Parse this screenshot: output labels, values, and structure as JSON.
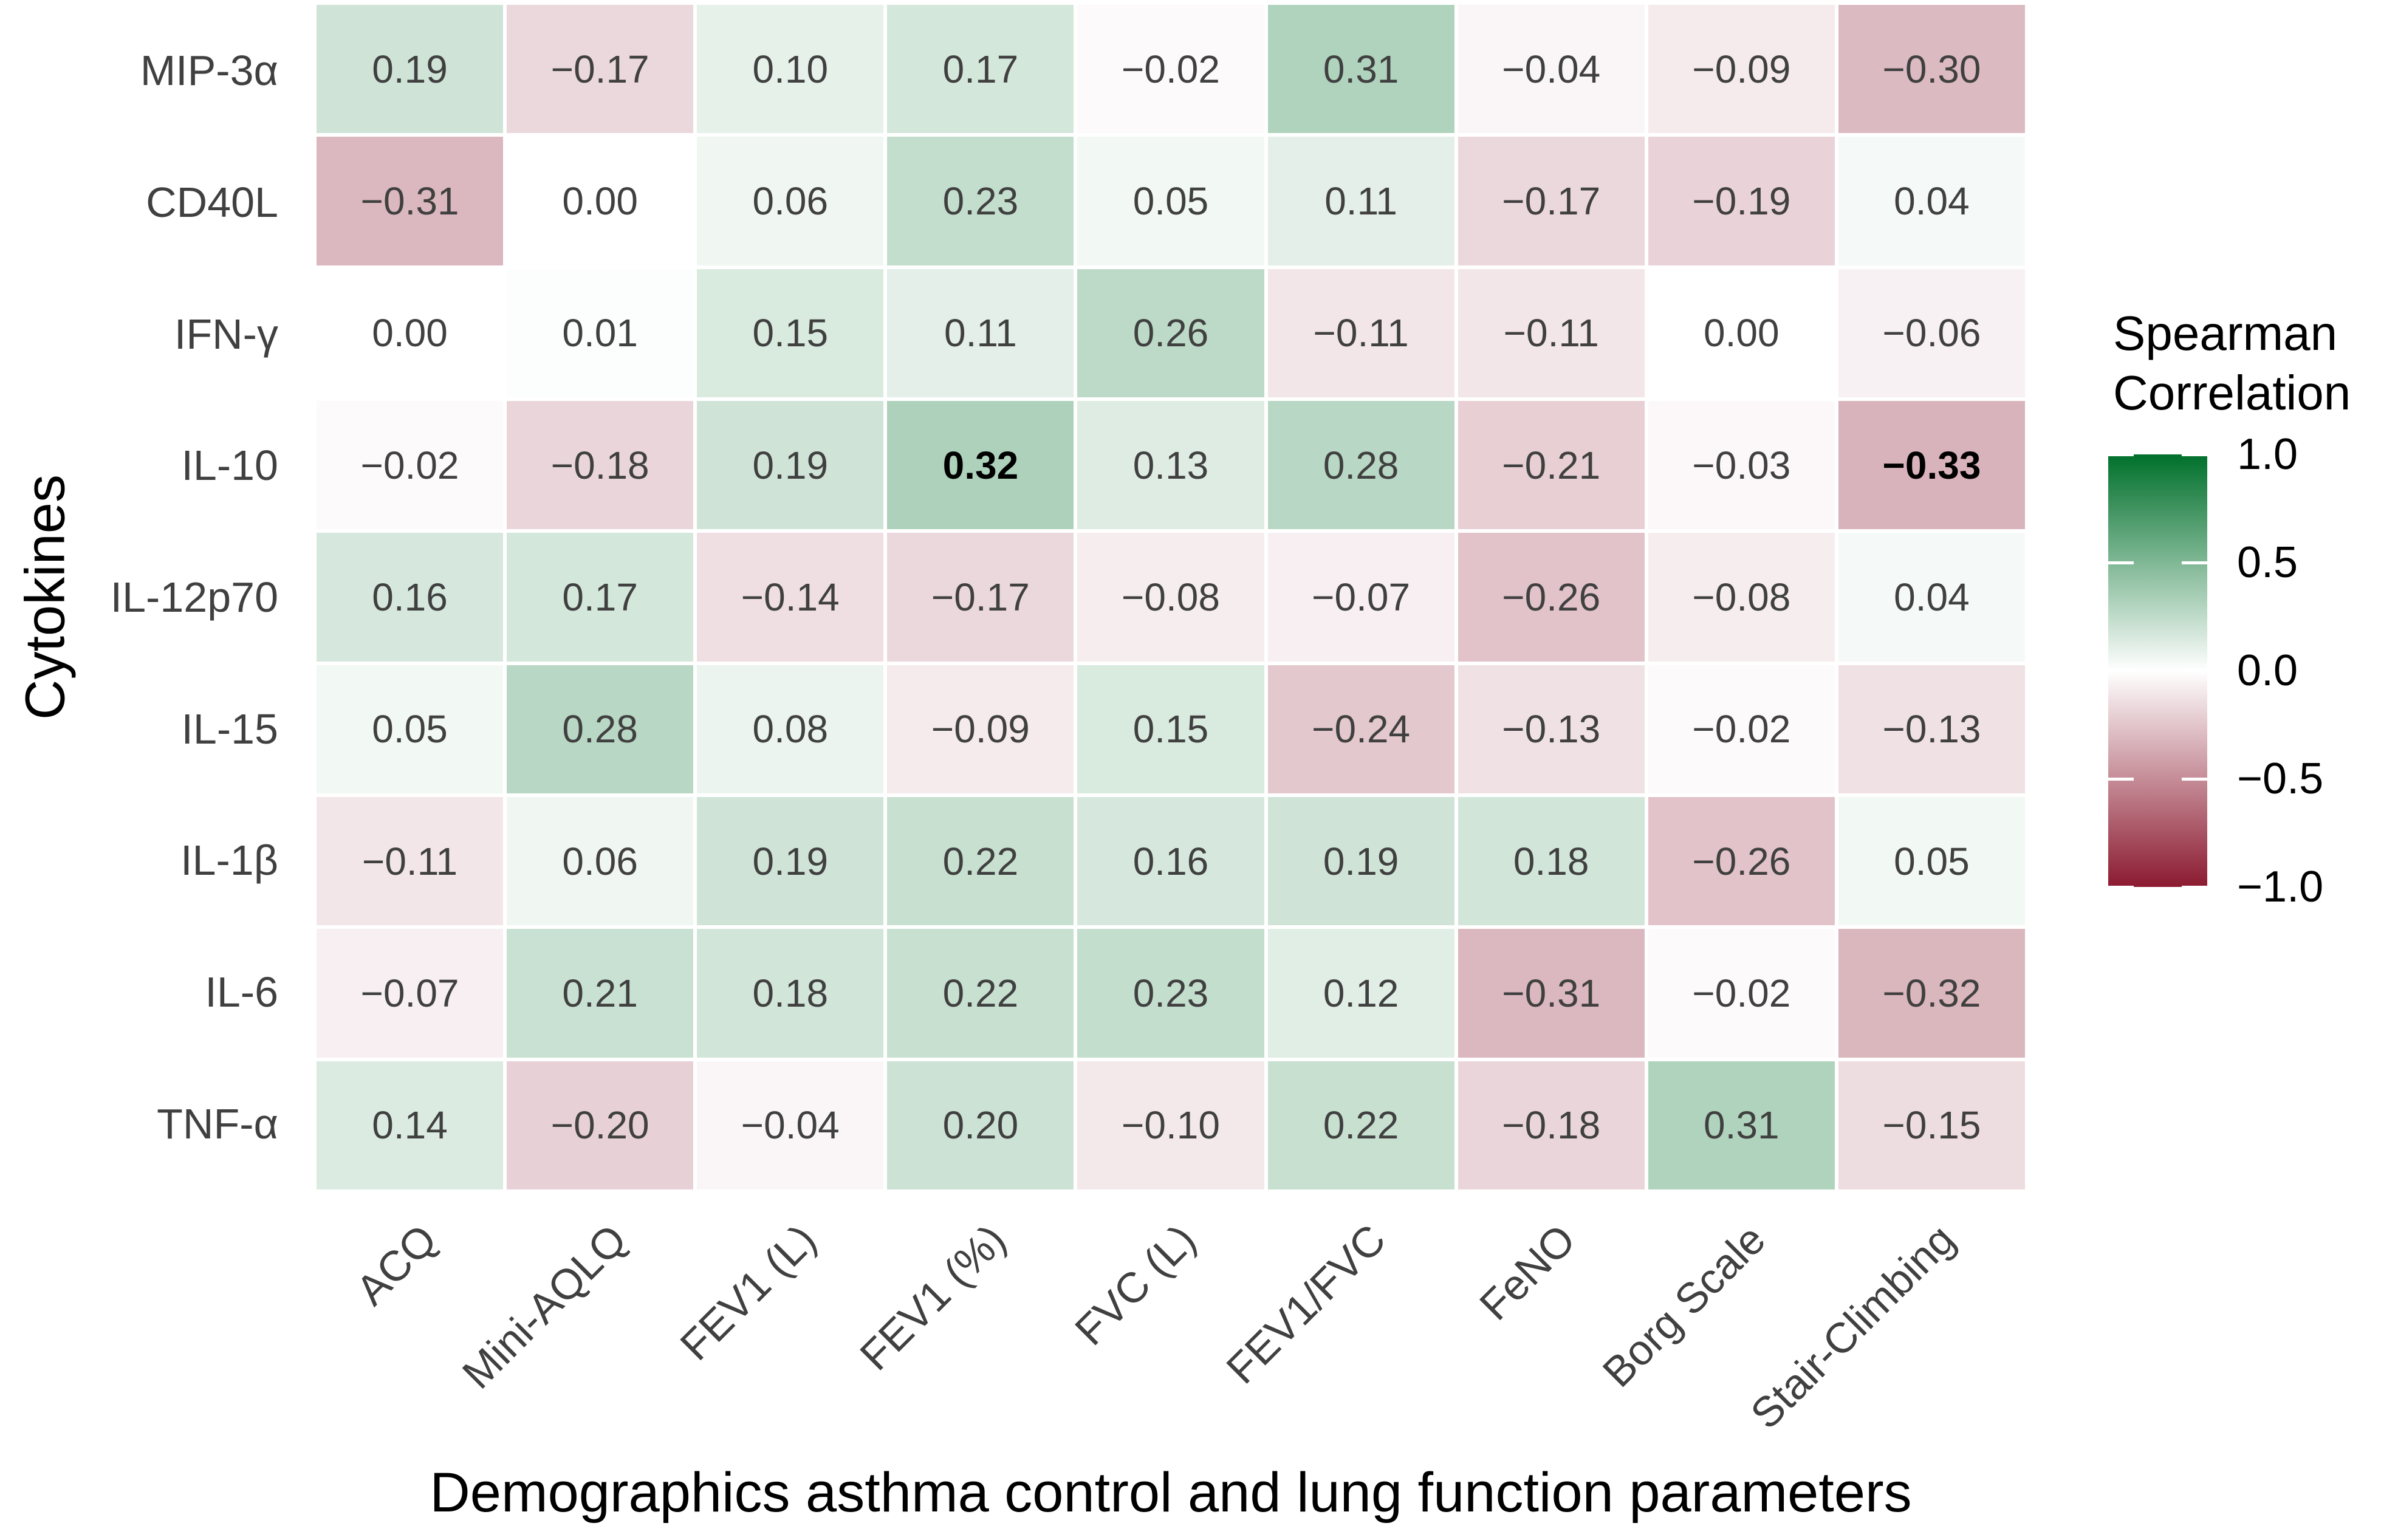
{
  "figure": {
    "background": "#ffffff"
  },
  "chart_data": {
    "type": "heatmap",
    "title": "",
    "xlabel": "Demographics asthma control and lung function parameters",
    "ylabel": "Cytokines",
    "x_categories": [
      "ACQ",
      "Mini-AQLQ",
      "FEV1 (L)",
      "FEV1 (%)",
      "FVC (L)",
      "FEV1/FVC",
      "FeNO",
      "Borg Scale",
      "Stair-Climbing"
    ],
    "y_categories": [
      "MIP-3α",
      "CD40L",
      "IFN-γ",
      "IL-10",
      "IL-12p70",
      "IL-15",
      "IL-1β",
      "IL-6",
      "TNF-α"
    ],
    "values": [
      [
        0.19,
        -0.17,
        0.1,
        0.17,
        -0.02,
        0.31,
        -0.04,
        -0.09,
        -0.3
      ],
      [
        -0.31,
        0.0,
        0.06,
        0.23,
        0.05,
        0.11,
        -0.17,
        -0.19,
        0.04
      ],
      [
        0.0,
        0.01,
        0.15,
        0.11,
        0.26,
        -0.11,
        -0.11,
        0.0,
        -0.06
      ],
      [
        -0.02,
        -0.18,
        0.19,
        0.32,
        0.13,
        0.28,
        -0.21,
        -0.03,
        -0.33
      ],
      [
        0.16,
        0.17,
        -0.14,
        -0.17,
        -0.08,
        -0.07,
        -0.26,
        -0.08,
        0.04
      ],
      [
        0.05,
        0.28,
        0.08,
        -0.09,
        0.15,
        -0.24,
        -0.13,
        -0.02,
        -0.13
      ],
      [
        -0.11,
        0.06,
        0.19,
        0.22,
        0.16,
        0.19,
        0.18,
        -0.26,
        0.05
      ],
      [
        -0.07,
        0.21,
        0.18,
        0.22,
        0.23,
        0.12,
        -0.31,
        -0.02,
        -0.32
      ],
      [
        0.14,
        -0.2,
        -0.04,
        0.2,
        -0.1,
        0.22,
        -0.18,
        0.31,
        -0.15
      ]
    ],
    "value_range": [
      -1,
      1
    ],
    "bold_cells": [
      {
        "row": "IL-10",
        "col": "FEV1 (%)"
      },
      {
        "row": "IL-10",
        "col": "Stair-Climbing"
      }
    ],
    "legend": {
      "title_lines": [
        "Spearman",
        "Correlation"
      ],
      "position": "right",
      "tick_values": [
        1.0,
        0.5,
        0.0,
        -0.5,
        -1.0
      ],
      "tick_labels": [
        "1.0",
        "0.5",
        "0.0",
        "−0.5",
        "−1.0"
      ]
    },
    "colors": {
      "high": "#00702b",
      "mid": "#ffffff",
      "low": "#8b1a30",
      "value_text": "#404040",
      "tick_text": "#404040",
      "title_text": "#000000"
    }
  }
}
